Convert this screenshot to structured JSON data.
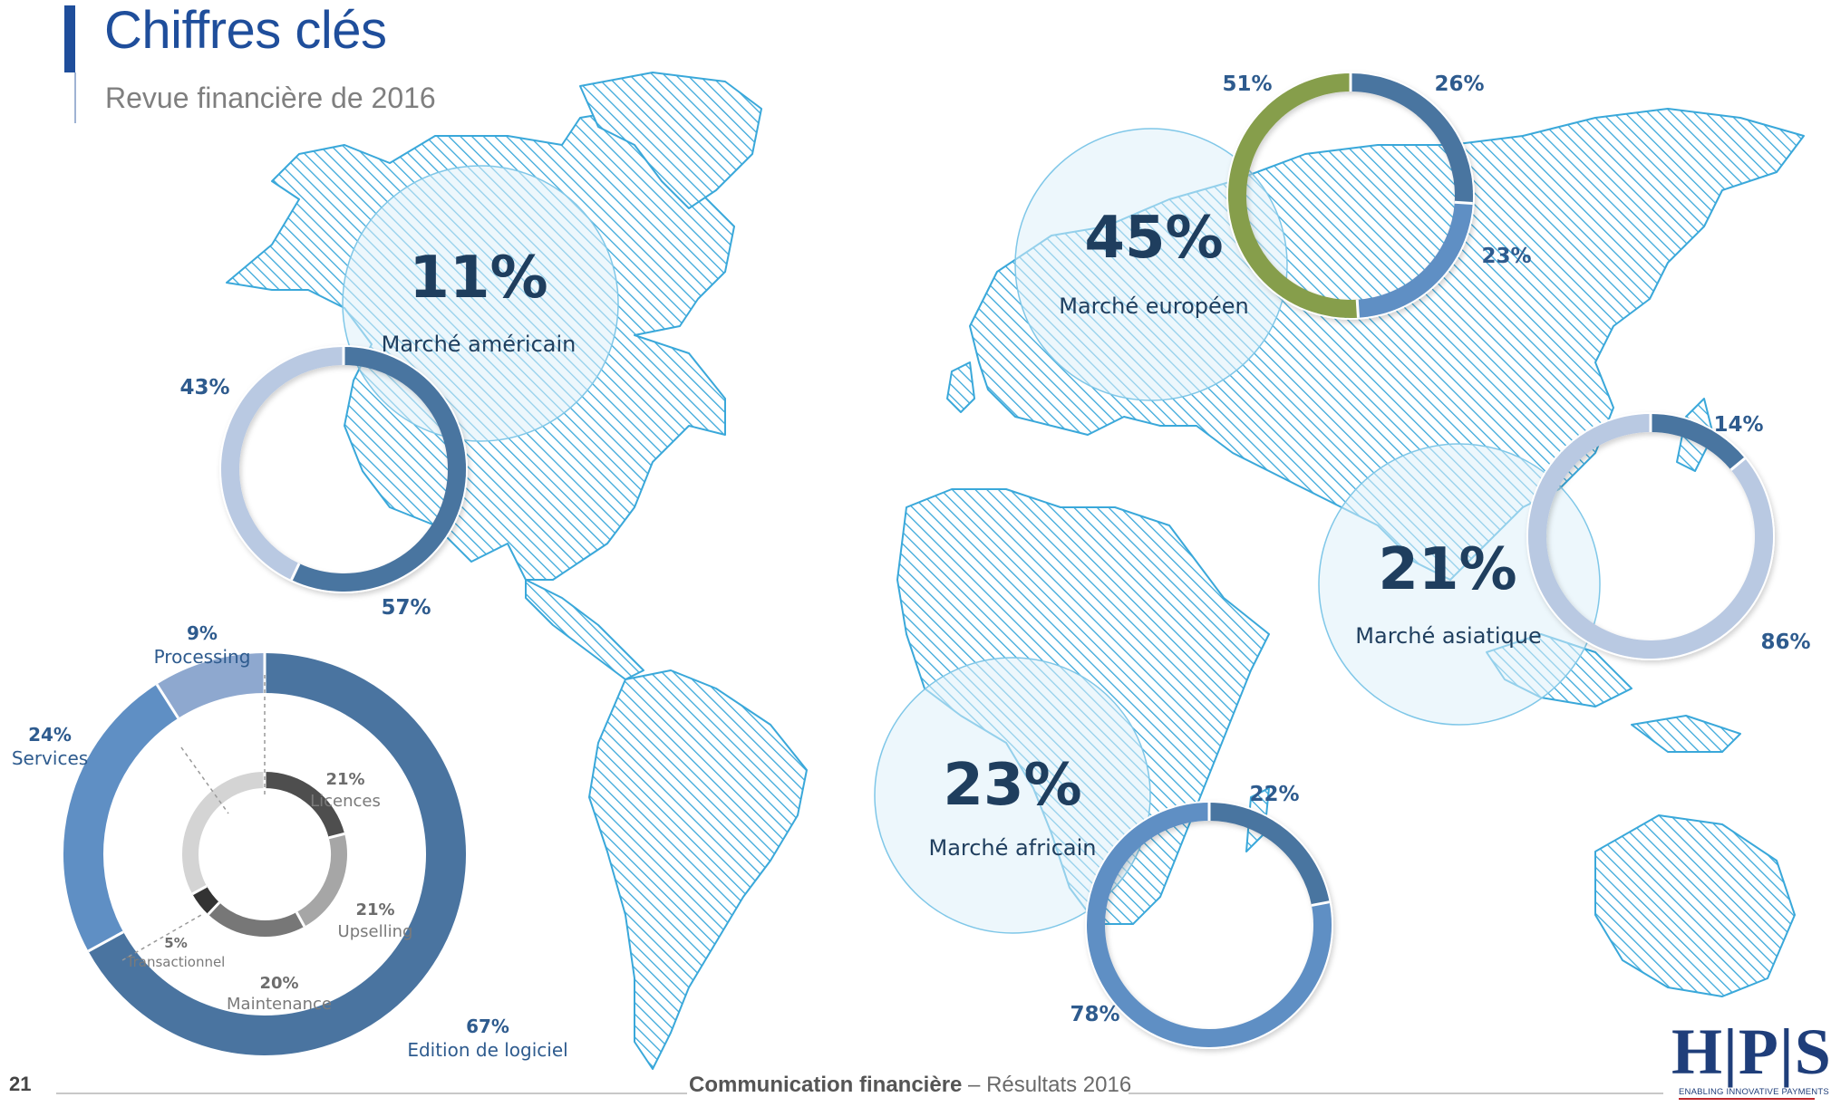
{
  "header": {
    "title": "Chiffres clés",
    "subtitle": "Revue financière de 2016"
  },
  "footer": {
    "page_number": "21",
    "title_bold": "Communication financière",
    "title_rest": " – Résultats 2016"
  },
  "logo": {
    "letters": "H|P|S",
    "tagline": "ENABLING INNOVATIVE PAYMENTS"
  },
  "colors": {
    "dark_blue": "#4a74a0",
    "mid_blue": "#5f8fc4",
    "light_blue": "#b9c9e2",
    "pale_blue": "#8ea8cf",
    "green": "#869e4b",
    "map_cyan": "#3aa8da",
    "heading_blue": "#1f3e5e"
  },
  "chart_data": [
    {
      "type": "pie",
      "title": "11%",
      "subtitle": "Marché américain",
      "slices": [
        {
          "label": "57%",
          "value": 57,
          "color": "#4a74a0"
        },
        {
          "label": "43%",
          "value": 43,
          "color": "#b9c9e2"
        }
      ]
    },
    {
      "type": "pie",
      "title": "45%",
      "subtitle": "Marché européen",
      "slices": [
        {
          "label": "26%",
          "value": 26,
          "color": "#4a74a0"
        },
        {
          "label": "23%",
          "value": 23,
          "color": "#5f8fc4"
        },
        {
          "label": "51%",
          "value": 51,
          "color": "#869e4b"
        }
      ]
    },
    {
      "type": "pie",
      "title": "21%",
      "subtitle": "Marché asiatique",
      "slices": [
        {
          "label": "14%",
          "value": 14,
          "color": "#4a74a0"
        },
        {
          "label": "86%",
          "value": 86,
          "color": "#b9c9e2"
        }
      ]
    },
    {
      "type": "pie",
      "title": "23%",
      "subtitle": "Marché africain",
      "slices": [
        {
          "label": "22%",
          "value": 22,
          "color": "#4a74a0"
        },
        {
          "label": "78%",
          "value": 78,
          "color": "#5f8fc4"
        }
      ]
    },
    {
      "type": "pie",
      "title": "",
      "outer_slices": [
        {
          "label": "67%",
          "name": "Edition de logiciel",
          "value": 67,
          "color": "#4a74a0"
        },
        {
          "label": "24%",
          "name": "Services",
          "value": 24,
          "color": "#5f8fc4"
        },
        {
          "label": "9%",
          "name": "Processing",
          "value": 9,
          "color": "#8ea8cf"
        }
      ],
      "inner_slices": [
        {
          "label": "21%",
          "name": "Licences",
          "value": 21,
          "color": "#4e4e4e"
        },
        {
          "label": "21%",
          "name": "Upselling",
          "value": 21,
          "color": "#a6a6a6"
        },
        {
          "label": "20%",
          "name": "Maintenance",
          "value": 20,
          "color": "#777777"
        },
        {
          "label": "5%",
          "name": "Transactionnel",
          "value": 5,
          "color": "#333333"
        },
        {
          "label": "",
          "name": "",
          "value": 33,
          "color": "#d4d4d4"
        }
      ]
    }
  ]
}
